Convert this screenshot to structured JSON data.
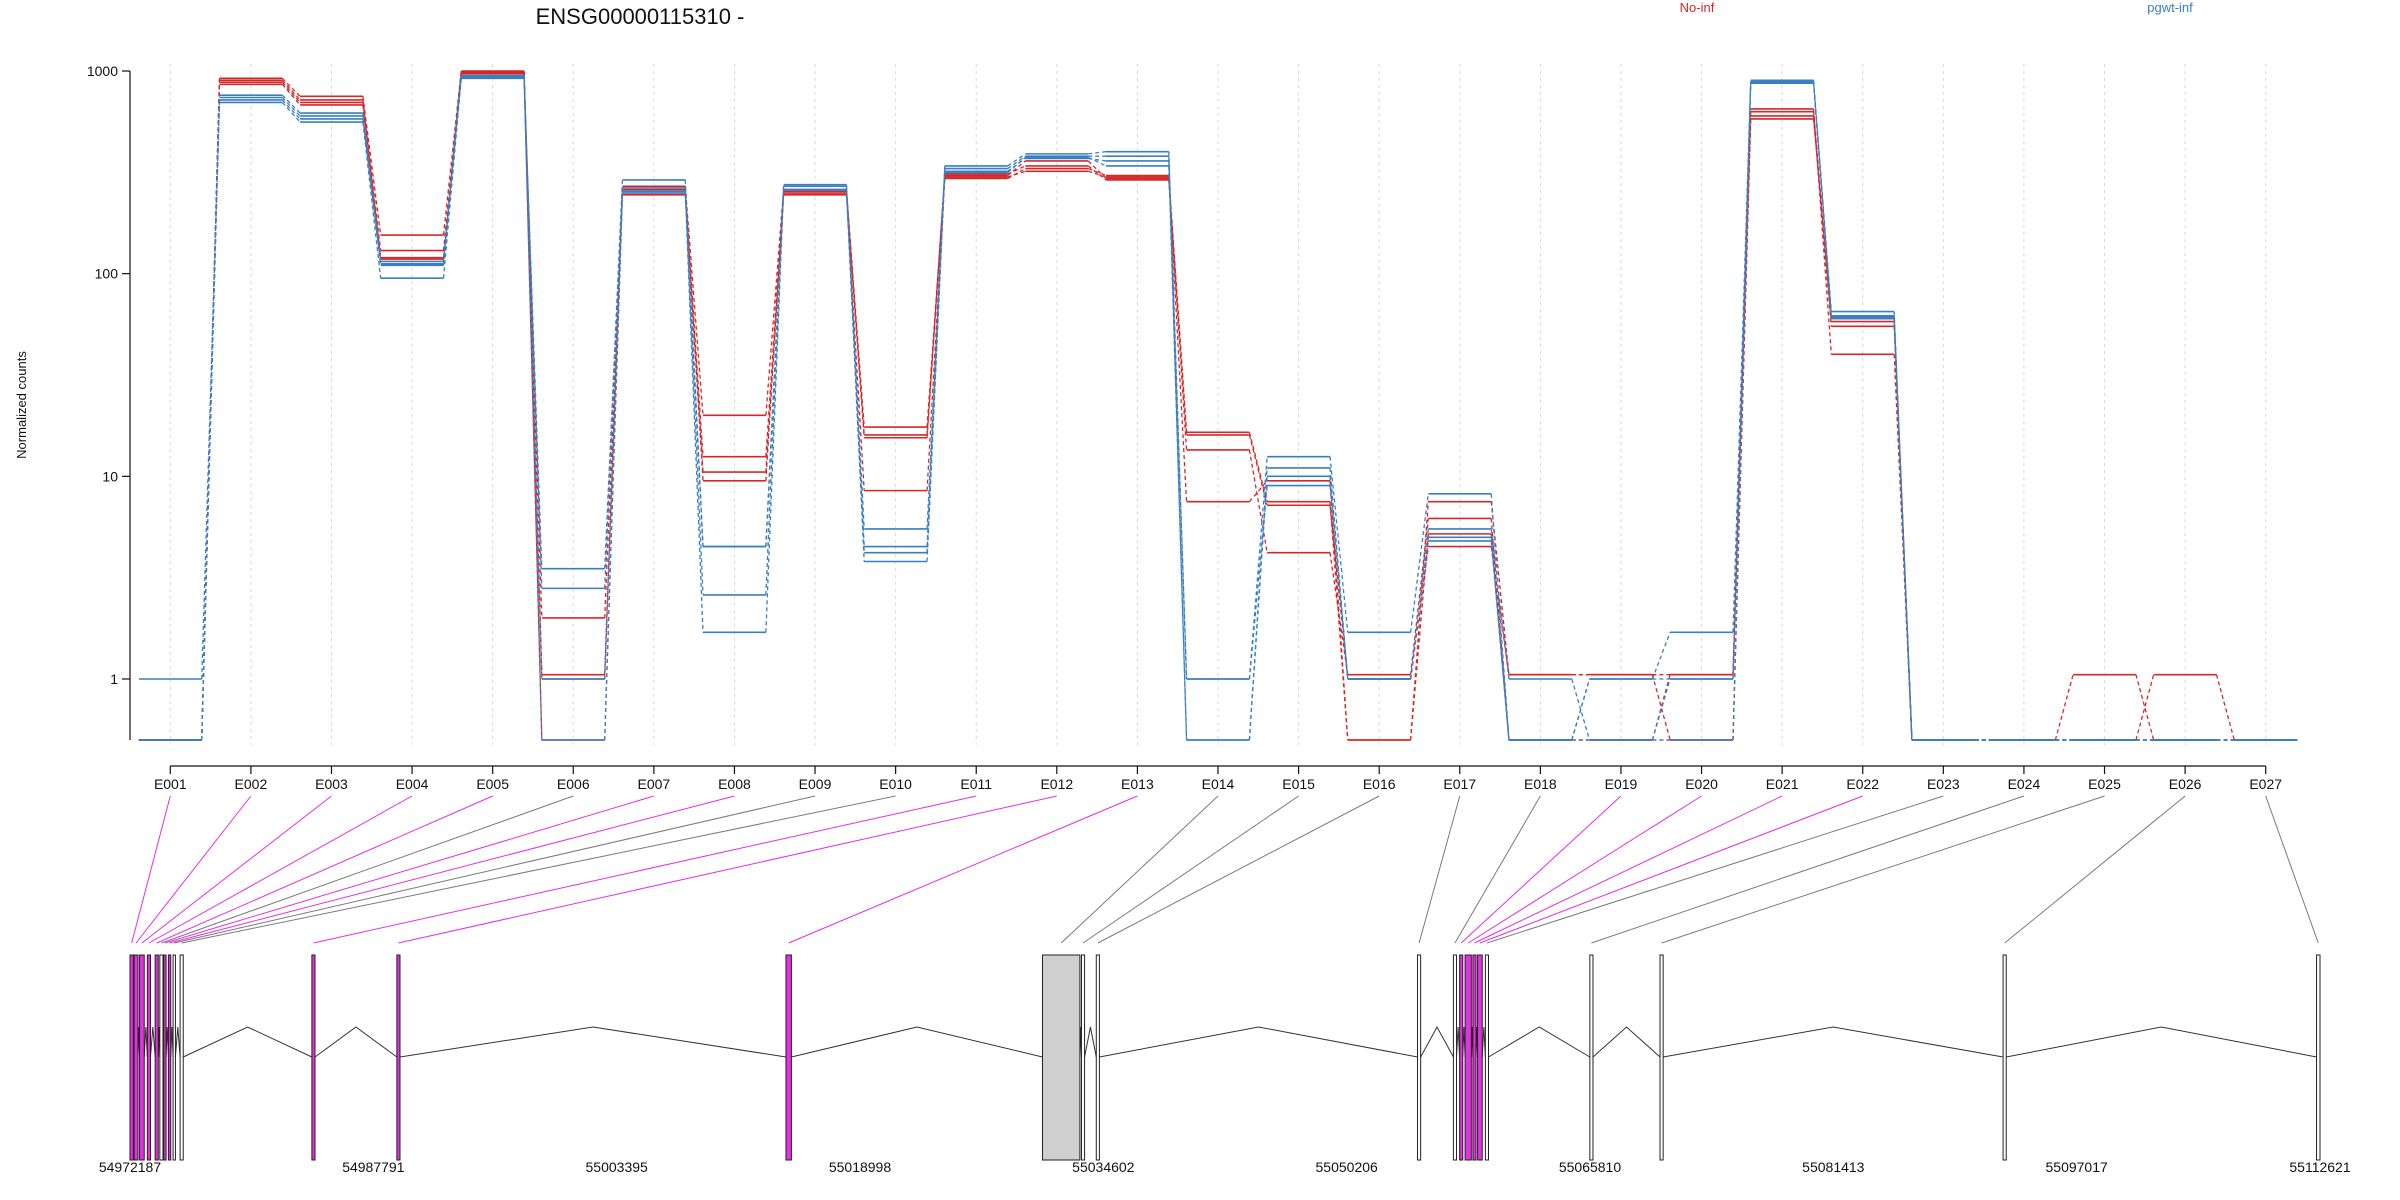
{
  "chart_data": {
    "type": "line",
    "title": "ENSG00000115310 -",
    "ylabel": "Normalized counts",
    "yscale": "log",
    "ylim": [
      0.5,
      1000
    ],
    "yticks": [
      "1",
      "10",
      "100",
      "1000"
    ],
    "categories": [
      "E001",
      "E002",
      "E003",
      "E004",
      "E005",
      "E006",
      "E007",
      "E008",
      "E009",
      "E010",
      "E011",
      "E012",
      "E013",
      "E014",
      "E015",
      "E016",
      "E017",
      "E018",
      "E019",
      "E020",
      "E021",
      "E022",
      "E023",
      "E024",
      "E025",
      "E026",
      "E027"
    ],
    "legend": [
      {
        "name": "No-inf",
        "color": "#d62728"
      },
      {
        "name": "pgwt-inf",
        "color": "#3a7fc1"
      }
    ],
    "series": [
      {
        "group": "No-inf",
        "color": "#d62728",
        "values": [
          0.5,
          920,
          750,
          155,
          1000,
          1.05,
          270,
          20,
          260,
          17.5,
          300,
          320,
          300,
          16.5,
          7.5,
          0.5,
          7.5,
          1.05,
          1.05,
          0.5,
          650,
          40,
          0.5,
          0.5,
          1.05,
          0.5,
          0.5
        ]
      },
      {
        "group": "No-inf",
        "color": "#d62728",
        "values": [
          0.5,
          880,
          700,
          130,
          980,
          2.0,
          255,
          12.5,
          250,
          15.5,
          310,
          340,
          290,
          13.5,
          4.2,
          1.05,
          6.2,
          0.5,
          0.5,
          1.05,
          600,
          55,
          0.5,
          0.5,
          0.5,
          1.05,
          0.5
        ]
      },
      {
        "group": "No-inf",
        "color": "#d62728",
        "values": [
          0.5,
          860,
          680,
          120,
          970,
          0.5,
          245,
          10.5,
          245,
          8.5,
          295,
          330,
          305,
          7.5,
          9.5,
          0.5,
          5.2,
          0.5,
          0.5,
          0.5,
          580,
          60,
          0.5,
          0.5,
          0.5,
          0.5,
          0.5
        ]
      },
      {
        "group": "No-inf",
        "color": "#d62728",
        "values": [
          0.5,
          900,
          720,
          118,
          990,
          1.0,
          260,
          9.5,
          255,
          16.0,
          305,
          360,
          295,
          16.0,
          7.2,
          1.0,
          4.5,
          1.05,
          1.05,
          1.05,
          630,
          58,
          0.5,
          0.5,
          0.5,
          0.5,
          0.5
        ]
      },
      {
        "group": "pgwt-inf",
        "color": "#3a7fc1",
        "values": [
          1.0,
          700,
          560,
          95,
          920,
          3.5,
          290,
          4.5,
          275,
          4.5,
          340,
          390,
          400,
          1.0,
          12.5,
          1.7,
          8.2,
          0.5,
          1.0,
          1.7,
          900,
          65,
          0.5,
          0.5,
          0.5,
          0.5,
          0.5
        ]
      },
      {
        "group": "pgwt-inf",
        "color": "#3a7fc1",
        "values": [
          0.5,
          760,
          620,
          110,
          950,
          2.8,
          265,
          2.6,
          270,
          5.5,
          330,
          380,
          380,
          0.5,
          11.0,
          1.0,
          5.5,
          1.0,
          0.5,
          0.5,
          870,
          62,
          0.5,
          0.5,
          0.5,
          0.5,
          0.5
        ]
      },
      {
        "group": "pgwt-inf",
        "color": "#3a7fc1",
        "values": [
          0.5,
          740,
          600,
          115,
          940,
          1.0,
          255,
          1.7,
          260,
          3.8,
          320,
          370,
          360,
          1.0,
          9.0,
          1.0,
          4.8,
          0.5,
          1.0,
          1.0,
          880,
          60,
          0.5,
          0.5,
          0.5,
          0.5,
          0.5
        ]
      },
      {
        "group": "pgwt-inf",
        "color": "#3a7fc1",
        "values": [
          0.5,
          720,
          580,
          112,
          930,
          0.5,
          250,
          4.5,
          258,
          4.2,
          315,
          375,
          340,
          0.5,
          10.0,
          1.0,
          5.0,
          0.5,
          0.5,
          1.0,
          890,
          61,
          0.5,
          0.5,
          0.5,
          0.5,
          0.5
        ]
      }
    ],
    "grid": "vertical dashed at each exon",
    "gene_model": {
      "coordinate_labels": [
        "54972187",
        "54987791",
        "55003395",
        "55018998",
        "55034602",
        "55050206",
        "55065810",
        "55081413",
        "55097017",
        "55112621"
      ],
      "exon_highlight_color": "#e52fe0",
      "exons": [
        {
          "id": "E001",
          "start": 54972187,
          "end": 54972400,
          "highlight": true
        },
        {
          "id": "E002",
          "start": 54972450,
          "end": 54972700,
          "highlight": true
        },
        {
          "id": "E003",
          "start": 54972800,
          "end": 54973100,
          "highlight": true
        },
        {
          "id": "E004",
          "start": 54973300,
          "end": 54973500,
          "highlight": true
        },
        {
          "id": "E005",
          "start": 54973800,
          "end": 54974000,
          "highlight": true
        },
        {
          "id": "E006",
          "start": 54974100,
          "end": 54974300,
          "highlight": false
        },
        {
          "id": "E007",
          "start": 54974350,
          "end": 54974500,
          "highlight": true
        },
        {
          "id": "E008",
          "start": 54974650,
          "end": 54974800,
          "highlight": true
        },
        {
          "id": "E009",
          "start": 54974950,
          "end": 54975100,
          "highlight": false
        },
        {
          "id": "E010",
          "start": 54975400,
          "end": 54975600,
          "highlight": false
        },
        {
          "id": "E011",
          "start": 54983850,
          "end": 54984050,
          "highlight": true
        },
        {
          "id": "E012",
          "start": 54989300,
          "end": 54989500,
          "highlight": true
        },
        {
          "id": "E013",
          "start": 55014250,
          "end": 55014600,
          "highlight": true
        },
        {
          "id": "E014",
          "start": 55030700,
          "end": 55033100,
          "highlight": false
        },
        {
          "id": "E015",
          "start": 55033200,
          "end": 55033400,
          "highlight": false
        },
        {
          "id": "E016",
          "start": 55034150,
          "end": 55034350,
          "highlight": false
        },
        {
          "id": "E017",
          "start": 55054750,
          "end": 55054950,
          "highlight": false
        },
        {
          "id": "E018",
          "start": 55057050,
          "end": 55057250,
          "highlight": false
        },
        {
          "id": "E019",
          "start": 55057450,
          "end": 55057650,
          "highlight": true
        },
        {
          "id": "E020",
          "start": 55057800,
          "end": 55058200,
          "highlight": true
        },
        {
          "id": "E021",
          "start": 55058300,
          "end": 55058500,
          "highlight": true
        },
        {
          "id": "E022",
          "start": 55058600,
          "end": 55058900,
          "highlight": true
        },
        {
          "id": "E023",
          "start": 55059100,
          "end": 55059300,
          "highlight": false
        },
        {
          "id": "E024",
          "start": 55065800,
          "end": 55066000,
          "highlight": false
        },
        {
          "id": "E025",
          "start": 55070300,
          "end": 55070500,
          "highlight": false
        },
        {
          "id": "E026",
          "start": 55092300,
          "end": 55092500,
          "highlight": false
        },
        {
          "id": "E027",
          "start": 55112400,
          "end": 55112621,
          "highlight": false
        }
      ]
    }
  }
}
